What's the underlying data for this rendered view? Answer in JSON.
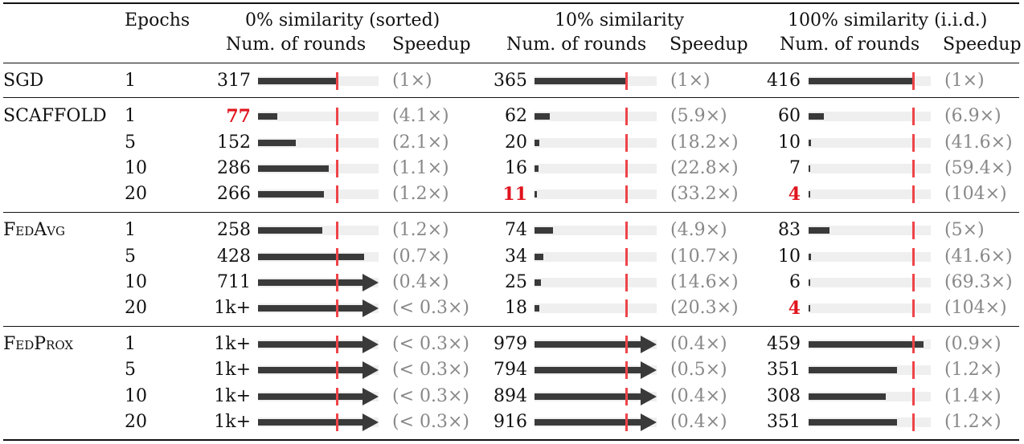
{
  "chart_data": {
    "type": "table",
    "header": {
      "epochs_label": "Epochs",
      "groups": [
        "0% similarity (sorted)",
        "10% similarity",
        "100% similarity (i.i.d.)"
      ],
      "sub_rounds": "Num. of rounds",
      "sub_speedup": "Speedup"
    },
    "rows": [
      {
        "method": "SGD",
        "epoch": "1",
        "cells": [
          {
            "label": "317",
            "value": 317,
            "over": false,
            "bold": false,
            "speedup": "(1×)"
          },
          {
            "label": "365",
            "value": 365,
            "over": false,
            "bold": false,
            "speedup": "(1×)"
          },
          {
            "label": "416",
            "value": 416,
            "over": false,
            "bold": false,
            "speedup": "(1×)"
          }
        ]
      },
      {
        "method": "SCAFFOLD",
        "epoch": "1",
        "cells": [
          {
            "label": "77",
            "value": 77,
            "over": false,
            "bold": true,
            "speedup": "(4.1×)"
          },
          {
            "label": "62",
            "value": 62,
            "over": false,
            "bold": false,
            "speedup": "(5.9×)"
          },
          {
            "label": "60",
            "value": 60,
            "over": false,
            "bold": false,
            "speedup": "(6.9×)"
          }
        ]
      },
      {
        "method": "",
        "epoch": "5",
        "cells": [
          {
            "label": "152",
            "value": 152,
            "over": false,
            "bold": false,
            "speedup": "(2.1×)"
          },
          {
            "label": "20",
            "value": 20,
            "over": false,
            "bold": false,
            "speedup": "(18.2×)"
          },
          {
            "label": "10",
            "value": 10,
            "over": false,
            "bold": false,
            "speedup": "(41.6×)"
          }
        ]
      },
      {
        "method": "",
        "epoch": "10",
        "cells": [
          {
            "label": "286",
            "value": 286,
            "over": false,
            "bold": false,
            "speedup": "(1.1×)"
          },
          {
            "label": "16",
            "value": 16,
            "over": false,
            "bold": false,
            "speedup": "(22.8×)"
          },
          {
            "label": "7",
            "value": 7,
            "over": false,
            "bold": false,
            "speedup": "(59.4×)"
          }
        ]
      },
      {
        "method": "",
        "epoch": "20",
        "cells": [
          {
            "label": "266",
            "value": 266,
            "over": false,
            "bold": false,
            "speedup": "(1.2×)"
          },
          {
            "label": "11",
            "value": 11,
            "over": false,
            "bold": true,
            "speedup": "(33.2×)"
          },
          {
            "label": "4",
            "value": 4,
            "over": false,
            "bold": true,
            "speedup": "(104×)"
          }
        ]
      },
      {
        "method": "FedAvg",
        "epoch": "1",
        "cells": [
          {
            "label": "258",
            "value": 258,
            "over": false,
            "bold": false,
            "speedup": "(1.2×)"
          },
          {
            "label": "74",
            "value": 74,
            "over": false,
            "bold": false,
            "speedup": "(4.9×)"
          },
          {
            "label": "83",
            "value": 83,
            "over": false,
            "bold": false,
            "speedup": "(5×)"
          }
        ]
      },
      {
        "method": "",
        "epoch": "5",
        "cells": [
          {
            "label": "428",
            "value": 428,
            "over": false,
            "bold": false,
            "speedup": "(0.7×)"
          },
          {
            "label": "34",
            "value": 34,
            "over": false,
            "bold": false,
            "speedup": "(10.7×)"
          },
          {
            "label": "10",
            "value": 10,
            "over": false,
            "bold": false,
            "speedup": "(41.6×)"
          }
        ]
      },
      {
        "method": "",
        "epoch": "10",
        "cells": [
          {
            "label": "711",
            "value": 711,
            "over": true,
            "bold": false,
            "speedup": "(0.4×)"
          },
          {
            "label": "25",
            "value": 25,
            "over": false,
            "bold": false,
            "speedup": "(14.6×)"
          },
          {
            "label": "6",
            "value": 6,
            "over": false,
            "bold": false,
            "speedup": "(69.3×)"
          }
        ]
      },
      {
        "method": "",
        "epoch": "20",
        "cells": [
          {
            "label": "1k+",
            "value": 1000,
            "over": true,
            "bold": false,
            "speedup": "(< 0.3×)"
          },
          {
            "label": "18",
            "value": 18,
            "over": false,
            "bold": false,
            "speedup": "(20.3×)"
          },
          {
            "label": "4",
            "value": 4,
            "over": false,
            "bold": true,
            "speedup": "(104×)"
          }
        ]
      },
      {
        "method": "FedProx",
        "epoch": "1",
        "cells": [
          {
            "label": "1k+",
            "value": 1000,
            "over": true,
            "bold": false,
            "speedup": "(< 0.3×)"
          },
          {
            "label": "979",
            "value": 979,
            "over": true,
            "bold": false,
            "speedup": "(0.4×)"
          },
          {
            "label": "459",
            "value": 459,
            "over": false,
            "bold": false,
            "speedup": "(0.9×)"
          }
        ]
      },
      {
        "method": "",
        "epoch": "5",
        "cells": [
          {
            "label": "1k+",
            "value": 1000,
            "over": true,
            "bold": false,
            "speedup": "(< 0.3×)"
          },
          {
            "label": "794",
            "value": 794,
            "over": true,
            "bold": false,
            "speedup": "(0.5×)"
          },
          {
            "label": "351",
            "value": 351,
            "over": false,
            "bold": false,
            "speedup": "(1.2×)"
          }
        ]
      },
      {
        "method": "",
        "epoch": "10",
        "cells": [
          {
            "label": "1k+",
            "value": 1000,
            "over": true,
            "bold": false,
            "speedup": "(< 0.3×)"
          },
          {
            "label": "894",
            "value": 894,
            "over": true,
            "bold": false,
            "speedup": "(0.4×)"
          },
          {
            "label": "308",
            "value": 308,
            "over": false,
            "bold": false,
            "speedup": "(1.4×)"
          }
        ]
      },
      {
        "method": "",
        "epoch": "20",
        "cells": [
          {
            "label": "1k+",
            "value": 1000,
            "over": true,
            "bold": false,
            "speedup": "(< 0.3×)"
          },
          {
            "label": "916",
            "value": 916,
            "over": true,
            "bold": false,
            "speedup": "(0.4×)"
          },
          {
            "label": "351",
            "value": 351,
            "over": false,
            "bold": false,
            "speedup": "(1.2×)"
          }
        ]
      }
    ]
  }
}
